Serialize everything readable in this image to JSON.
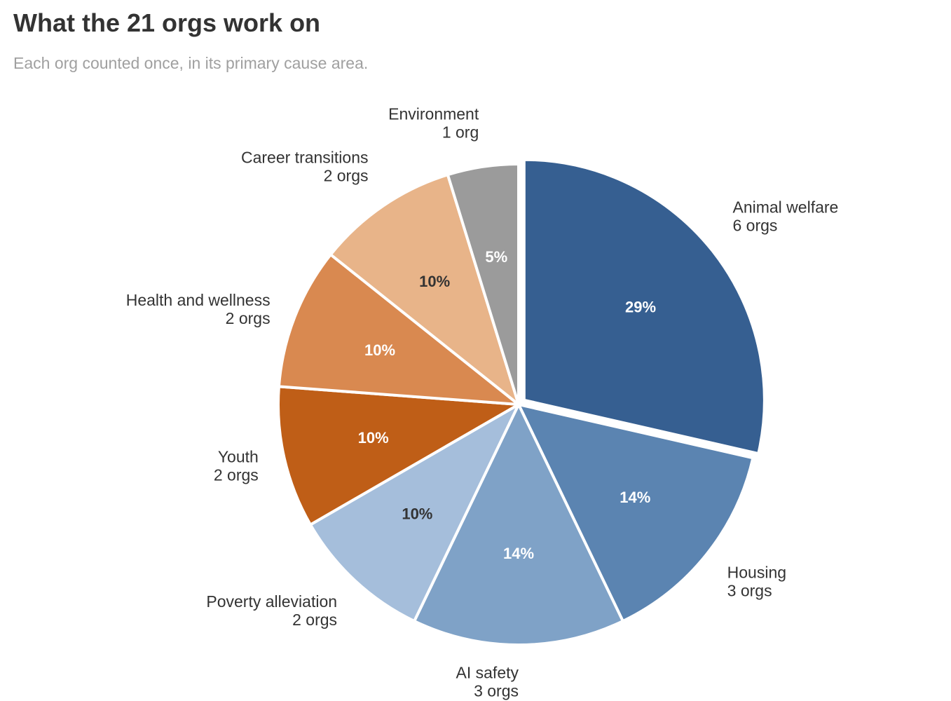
{
  "title": "What the 21 orgs work on",
  "subtitle": "Each org counted once, in its primary cause area.",
  "chart_data": {
    "type": "pie",
    "title": "What the 21 orgs work on",
    "subtitle": "Each org counted once, in its primary cause area.",
    "total": 21,
    "start": "top",
    "direction": "clockwise",
    "exploded": "Animal welfare",
    "slices": [
      {
        "label": "Animal welfare",
        "value": 6,
        "count_label": "6 orgs",
        "percent_label": "29%",
        "color": "#365f91",
        "text_color": "#ffffff"
      },
      {
        "label": "Housing",
        "value": 3,
        "count_label": "3 orgs",
        "percent_label": "14%",
        "color": "#5b84b1",
        "text_color": "#ffffff"
      },
      {
        "label": "AI safety",
        "value": 3,
        "count_label": "3 orgs",
        "percent_label": "14%",
        "color": "#7fa2c7",
        "text_color": "#ffffff"
      },
      {
        "label": "Poverty alleviation",
        "value": 2,
        "count_label": "2 orgs",
        "percent_label": "10%",
        "color": "#a5bedb",
        "text_color": "#333333"
      },
      {
        "label": "Youth",
        "value": 2,
        "count_label": "2 orgs",
        "percent_label": "10%",
        "color": "#bf5e17",
        "text_color": "#ffffff"
      },
      {
        "label": "Health and wellness",
        "value": 2,
        "count_label": "2 orgs",
        "percent_label": "10%",
        "color": "#d98950",
        "text_color": "#ffffff"
      },
      {
        "label": "Career transitions",
        "value": 2,
        "count_label": "2 orgs",
        "percent_label": "10%",
        "color": "#e8b489",
        "text_color": "#333333"
      },
      {
        "label": "Environment",
        "value": 1,
        "count_label": "1 org",
        "percent_label": "5%",
        "color": "#9b9b9b",
        "text_color": "#ffffff"
      }
    ]
  }
}
